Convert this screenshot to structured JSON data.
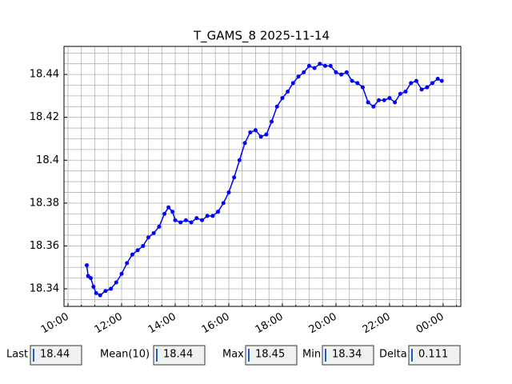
{
  "chart_data": {
    "type": "line",
    "title": "T_GAMS_8 2025-11-14",
    "x": [
      10.7,
      10.75,
      10.85,
      10.95,
      11.05,
      11.2,
      11.4,
      11.6,
      11.8,
      12.0,
      12.2,
      12.4,
      12.6,
      12.8,
      13.0,
      13.2,
      13.4,
      13.6,
      13.75,
      13.9,
      14.0,
      14.2,
      14.4,
      14.6,
      14.8,
      15.0,
      15.2,
      15.4,
      15.6,
      15.8,
      16.0,
      16.2,
      16.4,
      16.6,
      16.8,
      17.0,
      17.2,
      17.4,
      17.6,
      17.8,
      18.0,
      18.2,
      18.4,
      18.6,
      18.8,
      19.0,
      19.2,
      19.4,
      19.6,
      19.8,
      20.0,
      20.2,
      20.4,
      20.6,
      20.8,
      21.0,
      21.2,
      21.4,
      21.6,
      21.8,
      22.0,
      22.2,
      22.4,
      22.6,
      22.8,
      23.0,
      23.2,
      23.4,
      23.6,
      23.8,
      23.95
    ],
    "series": [
      {
        "name": "T_GAMS_8",
        "color": "#0000ff",
        "values": [
          18.351,
          18.346,
          18.345,
          18.341,
          18.338,
          18.337,
          18.339,
          18.34,
          18.343,
          18.347,
          18.352,
          18.356,
          18.358,
          18.36,
          18.364,
          18.366,
          18.369,
          18.375,
          18.378,
          18.376,
          18.372,
          18.371,
          18.372,
          18.371,
          18.373,
          18.372,
          18.374,
          18.374,
          18.376,
          18.38,
          18.385,
          18.392,
          18.4,
          18.408,
          18.413,
          18.414,
          18.411,
          18.412,
          18.418,
          18.425,
          18.429,
          18.432,
          18.436,
          18.439,
          18.441,
          18.444,
          18.443,
          18.445,
          18.444,
          18.444,
          18.441,
          18.44,
          18.441,
          18.437,
          18.436,
          18.434,
          18.427,
          18.425,
          18.428,
          18.428,
          18.429,
          18.427,
          18.431,
          18.432,
          18.436,
          18.437,
          18.433,
          18.434,
          18.436,
          18.438,
          18.437
        ]
      }
    ],
    "xlim": [
      9.85,
      24.66
    ],
    "xticks": [
      {
        "value": 10,
        "label": "10:00"
      },
      {
        "value": 12,
        "label": "12:00"
      },
      {
        "value": 14,
        "label": "14:00"
      },
      {
        "value": 16,
        "label": "16:00"
      },
      {
        "value": 18,
        "label": "18:00"
      },
      {
        "value": 20,
        "label": "20:00"
      },
      {
        "value": 22,
        "label": "22:00"
      },
      {
        "value": 24,
        "label": "00:00"
      }
    ],
    "xminorticks": [
      10.5,
      11,
      11.5,
      12.5,
      13,
      13.5,
      14.5,
      15,
      15.5,
      16.5,
      17,
      17.5,
      18.5,
      19,
      19.5,
      20.5,
      21,
      21.5,
      22.5,
      23,
      23.5,
      24.5
    ],
    "ylim": [
      18.3318,
      18.4531
    ],
    "yticks": [
      18.34,
      18.36,
      18.38,
      18.4,
      18.42,
      18.44
    ],
    "yminorticks": [
      18.335,
      18.345,
      18.35,
      18.355,
      18.365,
      18.37,
      18.375,
      18.385,
      18.39,
      18.395,
      18.405,
      18.41,
      18.415,
      18.425,
      18.43,
      18.435,
      18.445,
      18.45
    ],
    "grid": true
  },
  "fields": [
    {
      "label": "Last",
      "value": "18.44"
    },
    {
      "label": "Mean(10)",
      "value": "18.44"
    },
    {
      "label": "Max",
      "value": "18.45"
    },
    {
      "label": "Min",
      "value": "18.34"
    },
    {
      "label": "Delta",
      "value": "0.111"
    }
  ]
}
